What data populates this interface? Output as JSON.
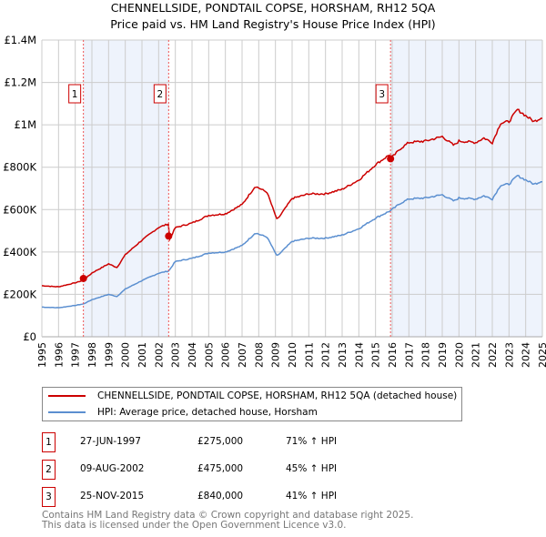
{
  "title": "CHENNELLSIDE, PONDTAIL COPSE, HORSHAM, RH12 5QA",
  "subtitle": "Price paid vs. HM Land Registry's House Price Index (HPI)",
  "colors": {
    "property": "#cc0000",
    "hpi": "#5b8fd0",
    "shade": "#eef3fc"
  },
  "chart_data": {
    "type": "line",
    "title": "CHENNELLSIDE, PONDTAIL COPSE, HORSHAM, RH12 5QA — Price paid vs. HM Land Registry's House Price Index (HPI)",
    "xlim": [
      1995,
      2025
    ],
    "ylim": [
      0,
      1400000
    ],
    "y_ticks": [
      0,
      200000,
      400000,
      600000,
      800000,
      1000000,
      1200000,
      1400000
    ],
    "y_tick_labels": [
      "£0",
      "£200K",
      "£400K",
      "£600K",
      "£800K",
      "£1M",
      "£1.2M",
      "£1.4M"
    ],
    "x_tick_labels": [
      "1995",
      "1996",
      "1997",
      "1998",
      "1999",
      "2000",
      "2001",
      "2002",
      "2003",
      "2004",
      "2005",
      "2006",
      "2007",
      "2008",
      "2009",
      "2010",
      "2011",
      "2012",
      "2013",
      "2014",
      "2015",
      "2016",
      "2017",
      "2018",
      "2019",
      "2020",
      "2021",
      "2022",
      "2023",
      "2024",
      "2025"
    ],
    "grid": true,
    "series": [
      {
        "name": "CHENNELLSIDE, PONDTAIL COPSE, HORSHAM, RH12 5QA (detached house)",
        "color": "#cc0000"
      },
      {
        "name": "HPI: Average price, detached house, Horsham",
        "color": "#5b8fd0",
        "x": [
          1995,
          1996,
          1997,
          1997.5,
          1998,
          1999,
          1999.5,
          2000,
          2001,
          2002,
          2002.6,
          2003,
          2004,
          2005,
          2006,
          2007,
          2007.8,
          2008.5,
          2009.1,
          2010,
          2011,
          2012,
          2013,
          2014,
          2015,
          2015.9,
          2016.5,
          2017,
          2018,
          2019,
          2019.7,
          2020,
          2021,
          2021.5,
          2022,
          2022.5,
          2023,
          2023.5,
          2024,
          2024.5,
          2025
        ],
        "y": [
          140000,
          137000,
          148000,
          155000,
          175000,
          200000,
          190000,
          225000,
          265000,
          300000,
          310000,
          355000,
          370000,
          395000,
          400000,
          430000,
          490000,
          470000,
          380000,
          450000,
          465000,
          465000,
          480000,
          510000,
          560000,
          595000,
          630000,
          650000,
          655000,
          670000,
          640000,
          655000,
          650000,
          665000,
          650000,
          715000,
          720000,
          760000,
          740000,
          720000,
          735000
        ]
      }
    ],
    "sales": [
      {
        "id": "1",
        "x": 1997.49,
        "date": "27-JUN-1997",
        "price": 275000,
        "price_label": "£275,000",
        "hpi_diff": "71% ↑ HPI"
      },
      {
        "id": "2",
        "x": 2002.6,
        "date": "09-AUG-2002",
        "price": 475000,
        "price_label": "£475,000",
        "hpi_diff": "45% ↑ HPI"
      },
      {
        "id": "3",
        "x": 2015.9,
        "date": "25-NOV-2015",
        "price": 840000,
        "price_label": "£840,000",
        "hpi_diff": "41% ↑ HPI"
      }
    ]
  },
  "footer": [
    "Contains HM Land Registry data © Crown copyright and database right 2025.",
    "This data is licensed under the Open Government Licence v3.0."
  ]
}
